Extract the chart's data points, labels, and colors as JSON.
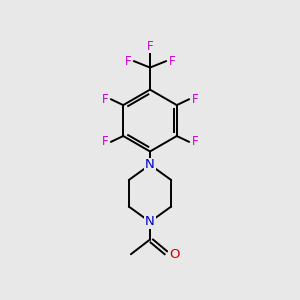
{
  "background_color": "#e8e8e8",
  "bond_color": "#000000",
  "N_color": "#0000cc",
  "O_color": "#cc0000",
  "F_color": "#cc00cc",
  "line_width": 1.4,
  "figsize": [
    3.0,
    3.0
  ],
  "dpi": 100,
  "xlim": [
    0,
    10
  ],
  "ylim": [
    0,
    10
  ]
}
